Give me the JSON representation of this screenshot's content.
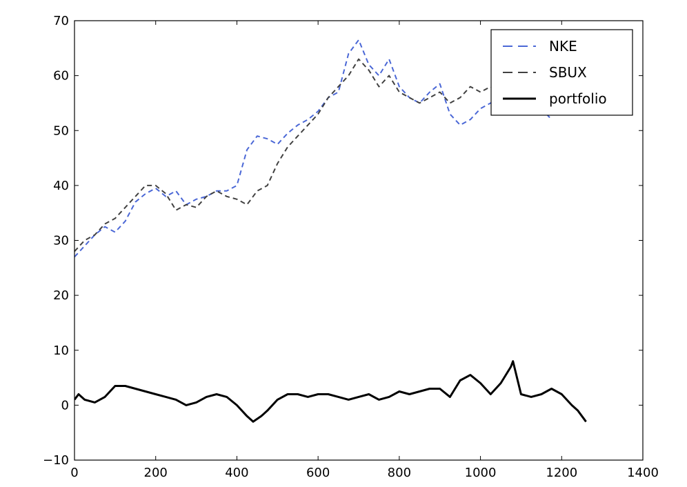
{
  "chart_data": {
    "type": "line",
    "title": "",
    "xlabel": "",
    "ylabel": "",
    "xlim": [
      0,
      1400
    ],
    "ylim": [
      -10,
      70
    ],
    "xticks": [
      0,
      200,
      400,
      600,
      800,
      1000,
      1200,
      1400
    ],
    "yticks": [
      -10,
      0,
      10,
      20,
      30,
      40,
      50,
      60,
      70
    ],
    "xtick_labels": [
      "0",
      "200",
      "400",
      "600",
      "800",
      "1000",
      "1200",
      "1400"
    ],
    "ytick_labels": [
      "−10",
      "0",
      "10",
      "20",
      "30",
      "40",
      "50",
      "60",
      "70"
    ],
    "grid": false,
    "legend_position": "top-right",
    "series": [
      {
        "name": "NKE",
        "color": "#4a67d6",
        "style": "dashed",
        "x": [
          0,
          25,
          50,
          75,
          100,
          125,
          150,
          175,
          200,
          225,
          250,
          275,
          300,
          325,
          350,
          375,
          400,
          425,
          450,
          475,
          500,
          525,
          550,
          575,
          600,
          625,
          650,
          675,
          700,
          725,
          750,
          775,
          800,
          825,
          850,
          875,
          900,
          925,
          950,
          975,
          1000,
          1025,
          1050,
          1075,
          1100,
          1125,
          1150,
          1175
        ],
        "values": [
          27,
          29,
          31,
          32.5,
          31.5,
          33.5,
          37,
          38.5,
          39.5,
          38,
          39,
          36.5,
          37.5,
          38,
          39,
          39,
          40,
          46.5,
          49,
          48.5,
          47.5,
          49.5,
          51,
          52,
          53.5,
          56,
          57,
          64,
          66.5,
          62,
          60,
          63,
          58,
          56,
          55,
          57,
          58.5,
          53,
          51,
          52,
          54,
          55,
          56.5,
          57.5,
          53,
          53.5,
          54,
          52
        ]
      },
      {
        "name": "SBUX",
        "color": "#404040",
        "style": "dashed",
        "x": [
          0,
          25,
          50,
          75,
          100,
          125,
          150,
          175,
          200,
          225,
          250,
          275,
          300,
          325,
          350,
          375,
          400,
          425,
          450,
          475,
          500,
          525,
          550,
          575,
          600,
          625,
          650,
          675,
          700,
          725,
          750,
          775,
          800,
          825,
          850,
          875,
          900,
          925,
          950,
          975,
          1000,
          1025,
          1050,
          1075
        ],
        "values": [
          28,
          30,
          31,
          33,
          34,
          36,
          38,
          40,
          40,
          38.5,
          35.5,
          36.5,
          36,
          38,
          39,
          38,
          37.5,
          36.5,
          39,
          40,
          44,
          47,
          49,
          51,
          53,
          56,
          58,
          60,
          63,
          61,
          58,
          60,
          57,
          56,
          55,
          56,
          57,
          55,
          56,
          58,
          57,
          58,
          57,
          56
        ]
      },
      {
        "name": "portfolio",
        "color": "#000000",
        "style": "solid",
        "x": [
          0,
          10,
          25,
          50,
          75,
          100,
          125,
          150,
          175,
          200,
          225,
          250,
          275,
          300,
          325,
          350,
          375,
          400,
          425,
          440,
          460,
          475,
          500,
          525,
          550,
          575,
          600,
          625,
          650,
          675,
          700,
          725,
          750,
          775,
          800,
          825,
          850,
          875,
          900,
          925,
          950,
          975,
          1000,
          1025,
          1050,
          1075,
          1080,
          1100,
          1125,
          1150,
          1175,
          1200,
          1225,
          1240,
          1250,
          1260
        ],
        "values": [
          1,
          2,
          1,
          0.5,
          1.5,
          3.5,
          3.5,
          3,
          2.5,
          2,
          1.5,
          1,
          0,
          0.5,
          1.5,
          2,
          1.5,
          0,
          -2,
          -3,
          -2,
          -1,
          1,
          2,
          2,
          1.5,
          2,
          2,
          1.5,
          1,
          1.5,
          2,
          1,
          1.5,
          2.5,
          2,
          2.5,
          3,
          3,
          1.5,
          4.5,
          5.5,
          4,
          2,
          4,
          7,
          8,
          2,
          1.5,
          2,
          3,
          2,
          0,
          -1,
          -2,
          -3
        ]
      }
    ]
  }
}
